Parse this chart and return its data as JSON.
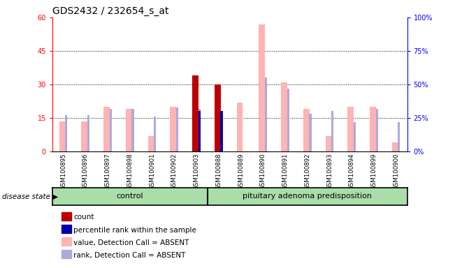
{
  "title": "GDS2432 / 232654_s_at",
  "samples": [
    "GSM100895",
    "GSM100896",
    "GSM100897",
    "GSM100898",
    "GSM100901",
    "GSM100902",
    "GSM100903",
    "GSM100888",
    "GSM100889",
    "GSM100890",
    "GSM100891",
    "GSM100892",
    "GSM100893",
    "GSM100894",
    "GSM100899",
    "GSM100900"
  ],
  "group_labels": [
    "control",
    "pituitary adenoma predisposition"
  ],
  "group_sizes": [
    7,
    9
  ],
  "pink_values": [
    13.5,
    13.5,
    20.0,
    19.0,
    7.0,
    20.0,
    33.5,
    20.0,
    22.0,
    57.0,
    31.0,
    19.0,
    7.0,
    20.0,
    20.0,
    4.0
  ],
  "blue_rank_values": [
    27.0,
    27.0,
    32.0,
    32.0,
    26.0,
    33.0,
    32.0,
    0.0,
    0.0,
    55.0,
    47.0,
    28.0,
    30.0,
    22.0,
    32.0,
    22.0
  ],
  "dark_red_count": [
    0.0,
    0.0,
    0.0,
    0.0,
    0.0,
    0.0,
    34.0,
    30.0,
    0.0,
    0.0,
    0.0,
    0.0,
    0.0,
    0.0,
    0.0,
    0.0
  ],
  "dark_blue_pct": [
    0.0,
    0.0,
    0.0,
    0.0,
    0.0,
    0.0,
    30.0,
    30.0,
    0.0,
    0.0,
    0.0,
    0.0,
    0.0,
    0.0,
    0.0,
    0.0
  ],
  "ylim_left": [
    0,
    60
  ],
  "ylim_right": [
    0,
    100
  ],
  "yticks_left": [
    0,
    15,
    30,
    45,
    60
  ],
  "yticks_right": [
    0,
    25,
    50,
    75,
    100
  ],
  "yticklabels_left": [
    "0",
    "15",
    "30",
    "45",
    "60"
  ],
  "yticklabels_right": [
    "0%",
    "25%",
    "50%",
    "75%",
    "100%"
  ],
  "grid_values": [
    15,
    30,
    45
  ],
  "pink_color": "#FFB3B3",
  "light_blue_color": "#AAAADD",
  "dark_red_color": "#BB0000",
  "dark_blue_color": "#0000AA",
  "group_color": "#AADDAA",
  "bg_color": "#CCCCCC",
  "legend_items": [
    {
      "color": "#BB0000",
      "label": "count"
    },
    {
      "color": "#0000AA",
      "label": "percentile rank within the sample"
    },
    {
      "color": "#FFB3B3",
      "label": "value, Detection Call = ABSENT"
    },
    {
      "color": "#AAAADD",
      "label": "rank, Detection Call = ABSENT"
    }
  ]
}
